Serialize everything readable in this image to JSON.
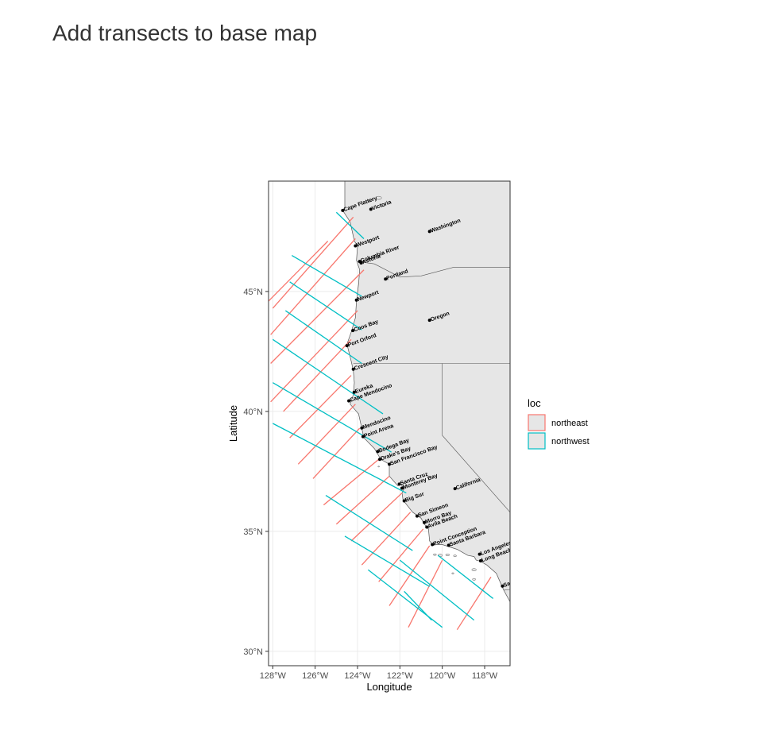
{
  "page": {
    "title": "Add transects to base map"
  },
  "chart_data": {
    "type": "map",
    "title": "",
    "xlabel": "Longitude",
    "ylabel": "Latitude",
    "xlim": [
      -128.2,
      -116.8
    ],
    "ylim": [
      29.4,
      49.6
    ],
    "x_ticks": [
      {
        "value": -128,
        "label": "128°W"
      },
      {
        "value": -126,
        "label": "126°W"
      },
      {
        "value": -124,
        "label": "124°W"
      },
      {
        "value": -122,
        "label": "122°W"
      },
      {
        "value": -120,
        "label": "120°W"
      },
      {
        "value": -118,
        "label": "118°W"
      }
    ],
    "y_ticks": [
      {
        "value": 30,
        "label": "30°N"
      },
      {
        "value": 35,
        "label": "35°N"
      },
      {
        "value": 40,
        "label": "40°N"
      },
      {
        "value": 45,
        "label": "45°N"
      }
    ],
    "grid": true,
    "legend_placement": "right",
    "legend": {
      "title": "loc",
      "entries": [
        {
          "name": "northeast",
          "color": "#F8766D"
        },
        {
          "name": "northwest",
          "color": "#00BFC4"
        }
      ]
    },
    "colors": {
      "land": "#e6e6e6",
      "land_border": "#555555",
      "northeast": "#F8766D",
      "northwest": "#00BFC4"
    },
    "coastline": [
      [
        -124.6,
        49.6
      ],
      [
        -124.6,
        48.4
      ],
      [
        -124.7,
        48.38
      ],
      [
        -124.35,
        47.9
      ],
      [
        -124.15,
        47.1
      ],
      [
        -124.0,
        46.9
      ],
      [
        -124.05,
        46.3
      ],
      [
        -123.9,
        45.9
      ],
      [
        -123.95,
        45.3
      ],
      [
        -124.05,
        44.6
      ],
      [
        -124.1,
        43.9
      ],
      [
        -124.3,
        43.3
      ],
      [
        -124.5,
        42.8
      ],
      [
        -124.3,
        42.1
      ],
      [
        -124.2,
        41.7
      ],
      [
        -124.15,
        41.2
      ],
      [
        -124.2,
        40.7
      ],
      [
        -124.35,
        40.3
      ],
      [
        -123.95,
        39.9
      ],
      [
        -123.8,
        39.3
      ],
      [
        -123.7,
        38.9
      ],
      [
        -123.2,
        38.45
      ],
      [
        -122.9,
        38.0
      ],
      [
        -122.5,
        37.8
      ],
      [
        -122.5,
        37.3
      ],
      [
        -122.1,
        36.9
      ],
      [
        -121.95,
        36.95
      ],
      [
        -121.8,
        36.8
      ],
      [
        -121.9,
        36.6
      ],
      [
        -121.85,
        36.3
      ],
      [
        -121.4,
        35.8
      ],
      [
        -121.0,
        35.55
      ],
      [
        -120.85,
        35.3
      ],
      [
        -120.65,
        35.1
      ],
      [
        -120.6,
        34.6
      ],
      [
        -120.45,
        34.45
      ],
      [
        -120.0,
        34.45
      ],
      [
        -119.3,
        34.25
      ],
      [
        -118.8,
        34.0
      ],
      [
        -118.5,
        33.95
      ],
      [
        -118.4,
        33.8
      ],
      [
        -118.2,
        33.75
      ],
      [
        -117.9,
        33.6
      ],
      [
        -117.45,
        33.25
      ],
      [
        -117.2,
        32.75
      ],
      [
        -117.1,
        32.55
      ],
      [
        -116.7,
        31.9
      ],
      [
        -116.6,
        31.5
      ],
      [
        -116.6,
        29.4
      ]
    ],
    "state_borders": [
      [
        [
          -124.0,
          46.25
        ],
        [
          -123.2,
          46.15
        ],
        [
          -122.0,
          45.6
        ],
        [
          -121.0,
          45.65
        ],
        [
          -119.5,
          46.0
        ],
        [
          -116.6,
          46.0
        ]
      ],
      [
        [
          -124.2,
          42.0
        ],
        [
          -116.6,
          42.0
        ]
      ],
      [
        [
          -120.0,
          42.0
        ],
        [
          -120.0,
          39.0
        ],
        [
          -116.6,
          35.6
        ]
      ],
      [
        [
          -117.1,
          32.55
        ],
        [
          -116.6,
          32.6
        ]
      ]
    ],
    "series": [
      {
        "name": "northeast",
        "segments": [
          [
            [
              -124.2,
              48.1
            ],
            [
              -128.0,
              44.3
            ]
          ],
          [
            [
              -125.4,
              47.1
            ],
            [
              -128.2,
              44.6
            ]
          ],
          [
            [
              -124.1,
              47.2
            ],
            [
              -128.1,
              43.2
            ]
          ],
          [
            [
              -123.7,
              45.9
            ],
            [
              -128.1,
              42.0
            ]
          ],
          [
            [
              -124.0,
              44.2
            ],
            [
              -128.1,
              40.4
            ]
          ],
          [
            [
              -124.3,
              43.0
            ],
            [
              -127.5,
              40.0
            ]
          ],
          [
            [
              -124.3,
              41.5
            ],
            [
              -127.2,
              38.9
            ]
          ],
          [
            [
              -124.1,
              40.3
            ],
            [
              -126.8,
              37.8
            ]
          ],
          [
            [
              -123.9,
              39.3
            ],
            [
              -126.1,
              37.2
            ]
          ],
          [
            [
              -123.0,
              38.0
            ],
            [
              -125.6,
              36.1
            ]
          ],
          [
            [
              -122.5,
              37.3
            ],
            [
              -125.0,
              35.3
            ]
          ],
          [
            [
              -121.9,
              36.6
            ],
            [
              -124.3,
              34.6
            ]
          ],
          [
            [
              -121.5,
              35.8
            ],
            [
              -123.8,
              33.6
            ]
          ],
          [
            [
              -120.9,
              35.1
            ],
            [
              -123.0,
              32.9
            ]
          ],
          [
            [
              -120.6,
              34.4
            ],
            [
              -122.5,
              31.9
            ]
          ],
          [
            [
              -120.0,
              33.8
            ],
            [
              -121.6,
              31.0
            ]
          ],
          [
            [
              -117.7,
              33.1
            ],
            [
              -119.3,
              30.9
            ]
          ]
        ]
      },
      {
        "name": "northwest",
        "segments": [
          [
            [
              -125.0,
              48.3
            ],
            [
              -123.7,
              47.2
            ]
          ],
          [
            [
              -127.1,
              46.5
            ],
            [
              -123.8,
              44.8
            ]
          ],
          [
            [
              -127.2,
              45.4
            ],
            [
              -123.8,
              43.4
            ]
          ],
          [
            [
              -127.4,
              44.2
            ],
            [
              -123.8,
              42.0
            ]
          ],
          [
            [
              -128.0,
              43.0
            ],
            [
              -122.8,
              39.9
            ]
          ],
          [
            [
              -128.0,
              41.2
            ],
            [
              -122.4,
              38.3
            ]
          ],
          [
            [
              -128.0,
              39.5
            ],
            [
              -121.7,
              36.6
            ]
          ],
          [
            [
              -125.5,
              36.5
            ],
            [
              -121.4,
              34.2
            ]
          ],
          [
            [
              -124.6,
              34.8
            ],
            [
              -120.6,
              32.7
            ]
          ],
          [
            [
              -123.5,
              33.4
            ],
            [
              -120.0,
              31.0
            ]
          ],
          [
            [
              -122.0,
              33.8
            ],
            [
              -118.5,
              31.3
            ]
          ],
          [
            [
              -120.2,
              34.0
            ],
            [
              -117.6,
              32.2
            ]
          ],
          [
            [
              -121.8,
              32.5
            ],
            [
              -120.5,
              31.3
            ]
          ]
        ]
      }
    ],
    "places": [
      {
        "name": "Cape Flattery",
        "lon": -124.7,
        "lat": 48.38
      },
      {
        "name": "Victoria",
        "lon": -123.37,
        "lat": 48.43
      },
      {
        "name": "Washington",
        "lon": -120.6,
        "lat": 47.5
      },
      {
        "name": "Westport",
        "lon": -124.1,
        "lat": 46.9
      },
      {
        "name": "Astoria",
        "lon": -123.83,
        "lat": 46.19
      },
      {
        "name": "Columbia River",
        "lon": -123.9,
        "lat": 46.25
      },
      {
        "name": "Portland",
        "lon": -122.68,
        "lat": 45.52
      },
      {
        "name": "Newport",
        "lon": -124.05,
        "lat": 44.64
      },
      {
        "name": "Coos Bay",
        "lon": -124.22,
        "lat": 43.37
      },
      {
        "name": "Oregon",
        "lon": -120.6,
        "lat": 43.8
      },
      {
        "name": "Port Orford",
        "lon": -124.5,
        "lat": 42.74
      },
      {
        "name": "Crescent City",
        "lon": -124.2,
        "lat": 41.76
      },
      {
        "name": "Eureka",
        "lon": -124.16,
        "lat": 40.8
      },
      {
        "name": "Cape Mendocino",
        "lon": -124.41,
        "lat": 40.44
      },
      {
        "name": "Mendocino",
        "lon": -123.8,
        "lat": 39.31
      },
      {
        "name": "Point Arena",
        "lon": -123.74,
        "lat": 38.95
      },
      {
        "name": "Bodega Bay",
        "lon": -123.05,
        "lat": 38.33
      },
      {
        "name": "Drake's Bay",
        "lon": -122.95,
        "lat": 38.0
      },
      {
        "name": "San Francisco Bay",
        "lon": -122.5,
        "lat": 37.8
      },
      {
        "name": "Santa Cruz",
        "lon": -122.03,
        "lat": 36.97
      },
      {
        "name": "Monterey Bay",
        "lon": -121.9,
        "lat": 36.8
      },
      {
        "name": "California",
        "lon": -119.4,
        "lat": 36.78
      },
      {
        "name": "Big Sur",
        "lon": -121.8,
        "lat": 36.27
      },
      {
        "name": "San Simeon",
        "lon": -121.19,
        "lat": 35.64
      },
      {
        "name": "Morro Bay",
        "lon": -120.85,
        "lat": 35.37
      },
      {
        "name": "Avila Beach",
        "lon": -120.73,
        "lat": 35.18
      },
      {
        "name": "Point Conception",
        "lon": -120.47,
        "lat": 34.45
      },
      {
        "name": "Santa Barbara",
        "lon": -119.7,
        "lat": 34.42
      },
      {
        "name": "Los Angeles",
        "lon": -118.24,
        "lat": 34.05
      },
      {
        "name": "Long Beach",
        "lon": -118.19,
        "lat": 33.77
      },
      {
        "name": "San Diego",
        "lon": -117.16,
        "lat": 32.72
      }
    ]
  }
}
